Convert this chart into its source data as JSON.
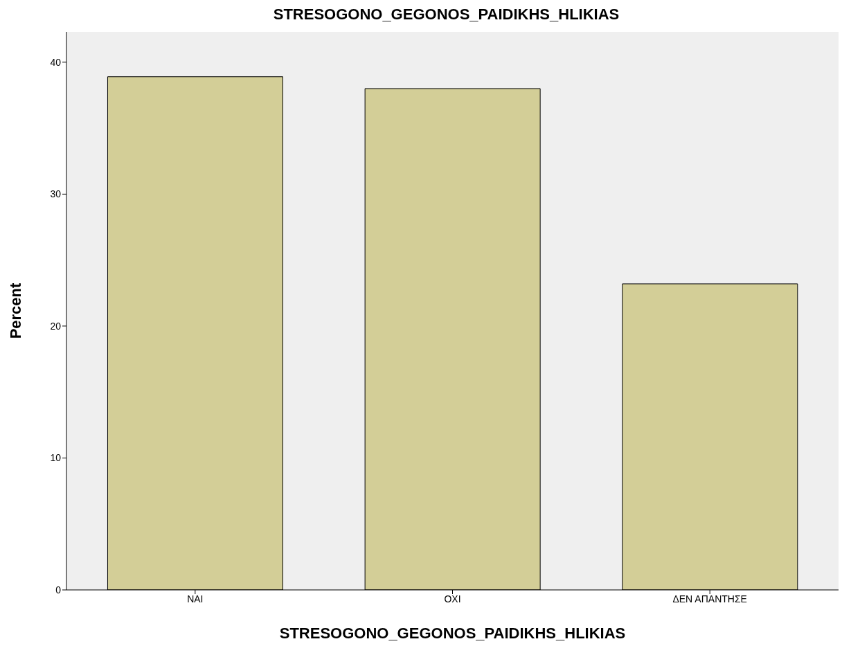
{
  "chart_data": {
    "type": "bar",
    "title": "STRESOGONO_GEGONOS_PAIDIKHS_HLIKIAS",
    "xlabel": "STRESOGONO_GEGONOS_PAIDIKHS_HLIKIAS",
    "ylabel": "Percent",
    "categories": [
      "ΝΑΙ",
      "ΟΧΙ",
      "ΔΕΝ ΑΠΑΝΤΗΣΕ"
    ],
    "values": [
      38.9,
      38.0,
      23.2
    ],
    "color": "#d3ce97",
    "ylim": [
      0,
      42.3
    ],
    "yticks": [
      0,
      10,
      20,
      30,
      40
    ],
    "grid": false
  }
}
